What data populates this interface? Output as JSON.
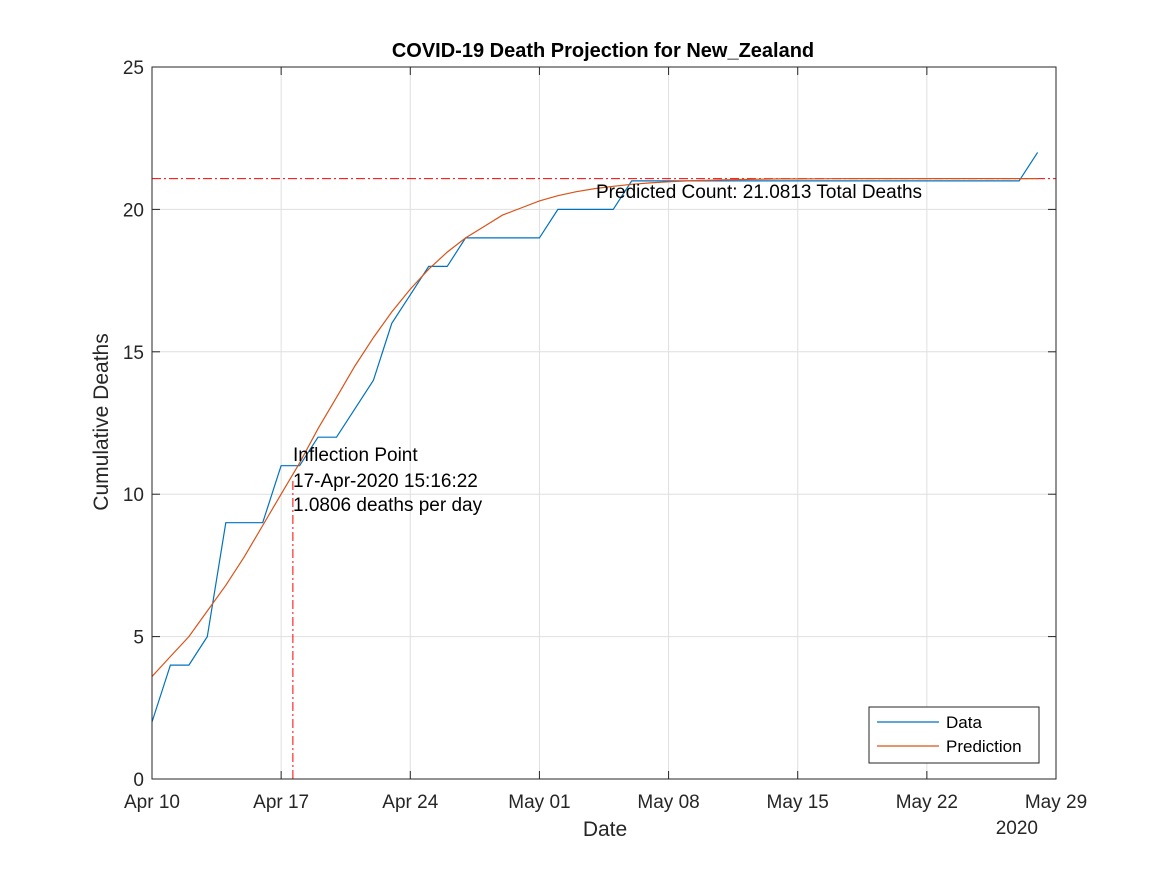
{
  "chart_data": {
    "type": "line",
    "title": "COVID-19 Death Projection for New_Zealand",
    "xlabel": "Date",
    "ylabel": "Cumulative Deaths",
    "x_year_label": "2020",
    "x_ticks": [
      "Apr 10",
      "Apr 17",
      "Apr 24",
      "May 01",
      "May 08",
      "May 15",
      "May 22",
      "May 29"
    ],
    "x_tick_dates": [
      "2020-04-10",
      "2020-04-17",
      "2020-04-24",
      "2020-05-01",
      "2020-05-08",
      "2020-05-15",
      "2020-05-22",
      "2020-05-29"
    ],
    "xlim": [
      "2020-04-10",
      "2020-05-29"
    ],
    "y_ticks": [
      "0",
      "5",
      "10",
      "15",
      "20",
      "25"
    ],
    "ylim": [
      0,
      25
    ],
    "grid": true,
    "legend_position": "bottom-right",
    "series": [
      {
        "name": "Data",
        "color": "#0072BD",
        "x": [
          "2020-04-10",
          "2020-04-11",
          "2020-04-12",
          "2020-04-13",
          "2020-04-14",
          "2020-04-15",
          "2020-04-16",
          "2020-04-17",
          "2020-04-18",
          "2020-04-19",
          "2020-04-20",
          "2020-04-21",
          "2020-04-22",
          "2020-04-23",
          "2020-04-24",
          "2020-04-25",
          "2020-04-26",
          "2020-04-27",
          "2020-04-28",
          "2020-04-29",
          "2020-04-30",
          "2020-05-01",
          "2020-05-02",
          "2020-05-03",
          "2020-05-04",
          "2020-05-05",
          "2020-05-06",
          "2020-05-07",
          "2020-05-08",
          "2020-05-09",
          "2020-05-10",
          "2020-05-11",
          "2020-05-12",
          "2020-05-13",
          "2020-05-14",
          "2020-05-15",
          "2020-05-16",
          "2020-05-17",
          "2020-05-18",
          "2020-05-19",
          "2020-05-20",
          "2020-05-21",
          "2020-05-22",
          "2020-05-23",
          "2020-05-24",
          "2020-05-25",
          "2020-05-26",
          "2020-05-27",
          "2020-05-28"
        ],
        "values": [
          2,
          4,
          4,
          5,
          9,
          9,
          9,
          11,
          11,
          12,
          12,
          13,
          14,
          16,
          17,
          18,
          18,
          19,
          19,
          19,
          19,
          19,
          20,
          20,
          20,
          20,
          21,
          21,
          21,
          21,
          21,
          21,
          21,
          21,
          21,
          21,
          21,
          21,
          21,
          21,
          21,
          21,
          21,
          21,
          21,
          21,
          21,
          21,
          22
        ]
      },
      {
        "name": "Prediction",
        "color": "#D95319",
        "x": [
          "2020-04-10",
          "2020-04-11",
          "2020-04-12",
          "2020-04-13",
          "2020-04-14",
          "2020-04-15",
          "2020-04-16",
          "2020-04-17",
          "2020-04-18",
          "2020-04-19",
          "2020-04-20",
          "2020-04-21",
          "2020-04-22",
          "2020-04-23",
          "2020-04-24",
          "2020-04-25",
          "2020-04-26",
          "2020-04-27",
          "2020-04-28",
          "2020-04-29",
          "2020-04-30",
          "2020-05-01",
          "2020-05-02",
          "2020-05-03",
          "2020-05-04",
          "2020-05-05",
          "2020-05-06",
          "2020-05-07",
          "2020-05-08",
          "2020-05-09",
          "2020-05-10",
          "2020-05-11",
          "2020-05-12",
          "2020-05-13",
          "2020-05-14",
          "2020-05-15",
          "2020-05-16",
          "2020-05-17",
          "2020-05-18",
          "2020-05-19",
          "2020-05-20",
          "2020-05-21",
          "2020-05-22",
          "2020-05-23",
          "2020-05-24",
          "2020-05-25",
          "2020-05-26",
          "2020-05-27",
          "2020-05-28"
        ],
        "values": [
          3.6,
          4.3,
          5.0,
          5.9,
          6.8,
          7.8,
          8.9,
          10.0,
          11.1,
          12.3,
          13.4,
          14.5,
          15.5,
          16.4,
          17.2,
          17.9,
          18.5,
          19.0,
          19.4,
          19.8,
          20.05,
          20.3,
          20.48,
          20.62,
          20.73,
          20.81,
          20.88,
          20.93,
          20.97,
          21.0,
          21.02,
          21.04,
          21.05,
          21.06,
          21.07,
          21.07,
          21.075,
          21.078,
          21.08,
          21.08,
          21.08,
          21.081,
          21.081,
          21.081,
          21.081,
          21.081,
          21.081,
          21.081,
          21.081
        ]
      }
    ],
    "annotations": {
      "asymptote": {
        "value": 21.0813,
        "color": "#FF0000",
        "label": "Predicted Count: 21.0813 Total Deaths"
      },
      "inflection": {
        "datetime": "2020-04-17T15:16:22",
        "color": "#FF0000",
        "lines": [
          "Inflection Point",
          "17-Apr-2020 15:16:22",
          "1.0806 deaths per day"
        ]
      }
    }
  }
}
